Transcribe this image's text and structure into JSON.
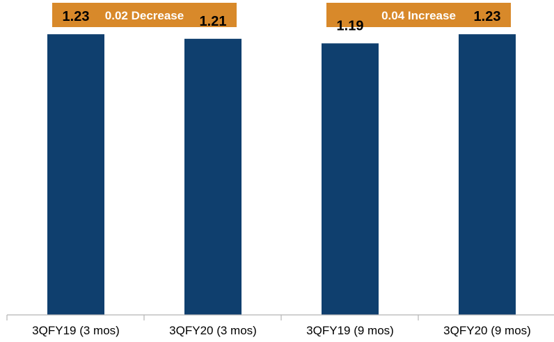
{
  "chart_data": {
    "type": "bar",
    "categories": [
      "3QFY19 (3 mos)",
      "3QFY20 (3 mos)",
      "3QFY19 (9 mos)",
      "3QFY20 (9 mos)"
    ],
    "values": [
      1.23,
      1.21,
      1.19,
      1.23
    ],
    "value_labels": [
      "1.23",
      "1.21",
      "1.19",
      "1.23"
    ],
    "title": "",
    "xlabel": "",
    "ylabel": "",
    "ylim": [
      0,
      1.38
    ],
    "grid": false,
    "annotations": [
      {
        "text": "0.02 Decrease",
        "spans": [
          0,
          1
        ]
      },
      {
        "text": "0.04 Increase",
        "spans": [
          2,
          3
        ]
      }
    ],
    "colors": {
      "bar": "#0f3f6e",
      "banner": "#d8892a",
      "axis": "#b5b5b5"
    }
  }
}
